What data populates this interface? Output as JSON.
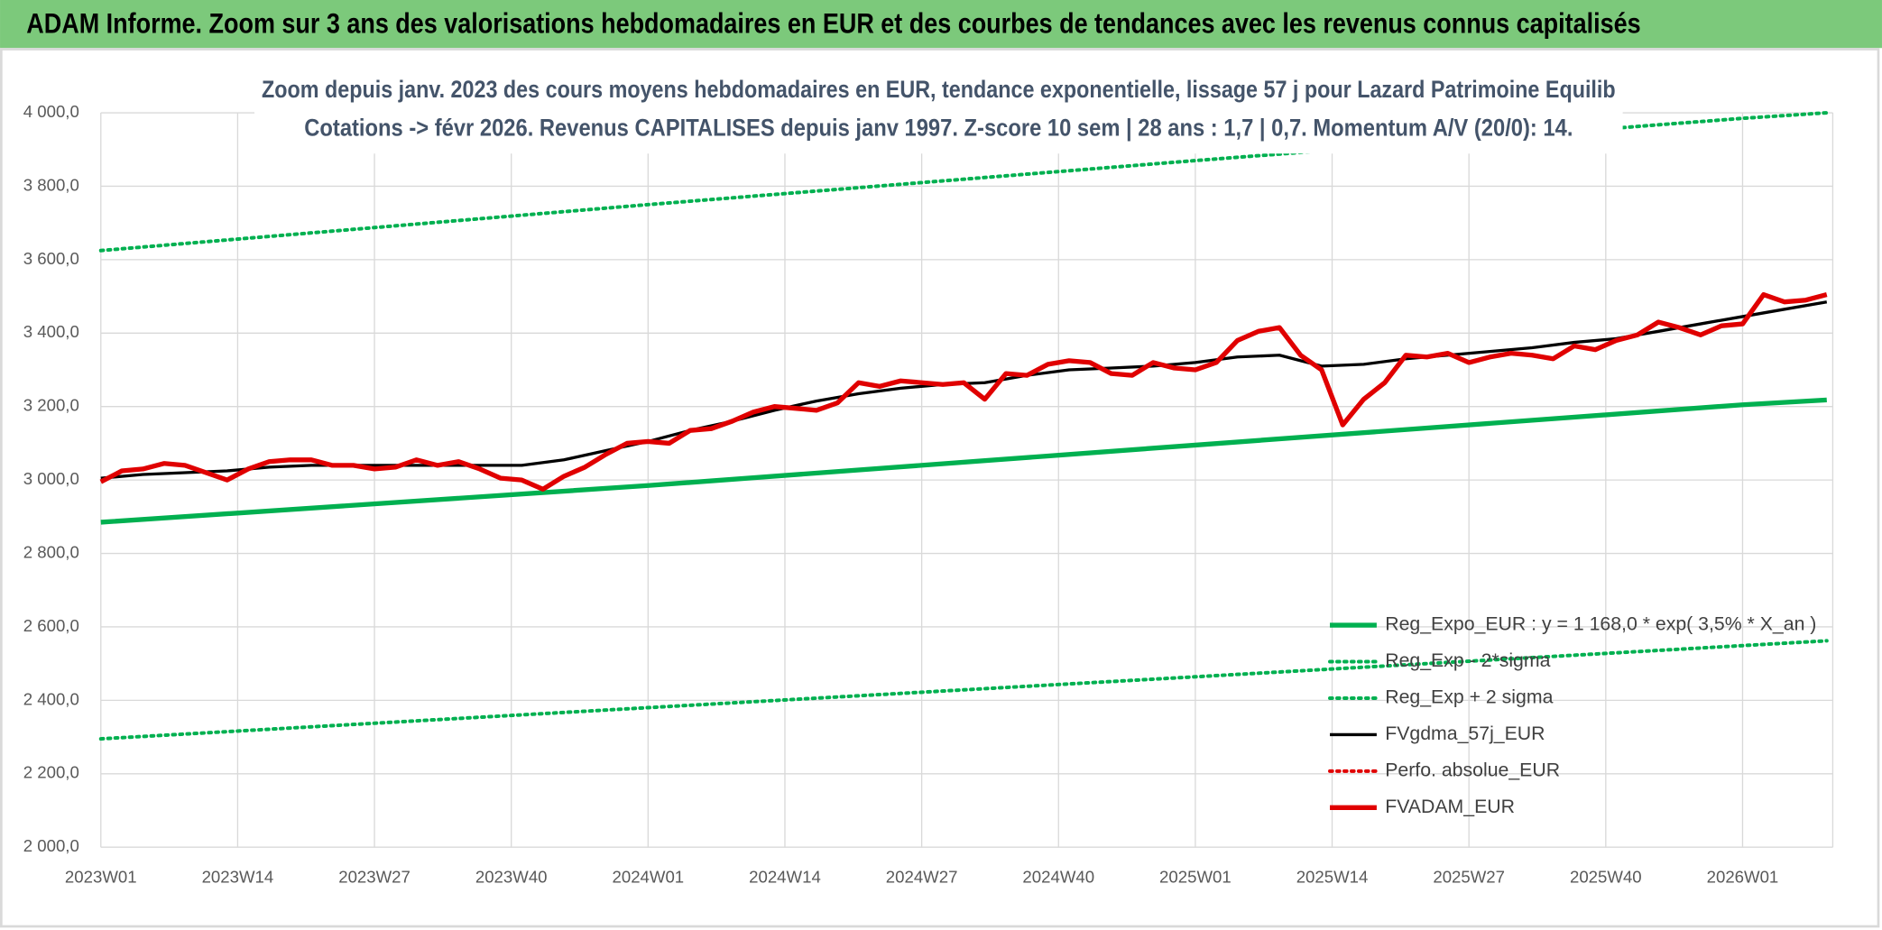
{
  "chart_data": {
    "type": "line",
    "title": "ADAM Informe. Zoom sur 3 ans des valorisations hebdomadaires en EUR et des courbes de tendances avec les revenus connus capitalisés",
    "subtitle": [
      "Zoom depuis janv. 2023 des cours moyens hebdomadaires en EUR, tendance exponentielle, lissage 57 j pour Lazard Patrimoine Equilib",
      "Cotations -> févr 2026. Revenus CAPITALISES depuis janv 1997. Z-score 10 sem | 28 ans : 1,7 | 0,7. Momentum A/V (20/0): 14."
    ],
    "xlim": [
      0,
      164
    ],
    "xticks": [
      {
        "value": 0,
        "label": "2023W01"
      },
      {
        "value": 13,
        "label": "2023W14"
      },
      {
        "value": 26,
        "label": "2023W27"
      },
      {
        "value": 39,
        "label": "2023W40"
      },
      {
        "value": 52,
        "label": "2024W01"
      },
      {
        "value": 65,
        "label": "2024W14"
      },
      {
        "value": 78,
        "label": "2024W27"
      },
      {
        "value": 91,
        "label": "2024W40"
      },
      {
        "value": 104,
        "label": "2025W01"
      },
      {
        "value": 117,
        "label": "2025W14"
      },
      {
        "value": 130,
        "label": "2025W27"
      },
      {
        "value": 143,
        "label": "2025W40"
      },
      {
        "value": 156,
        "label": "2026W01"
      }
    ],
    "ylim": [
      2000,
      4000
    ],
    "yticks": [
      {
        "value": 2000,
        "label": "2 000,0"
      },
      {
        "value": 2200,
        "label": "2 200,0"
      },
      {
        "value": 2400,
        "label": "2 400,0"
      },
      {
        "value": 2600,
        "label": "2 600,0"
      },
      {
        "value": 2800,
        "label": "2 800,0"
      },
      {
        "value": 3000,
        "label": "3 000,0"
      },
      {
        "value": 3200,
        "label": "3 200,0"
      },
      {
        "value": 3400,
        "label": "3 400,0"
      },
      {
        "value": 3600,
        "label": "3 600,0"
      },
      {
        "value": 3800,
        "label": "3 800,0"
      },
      {
        "value": 4000,
        "label": "4 000,0"
      }
    ],
    "grid": true,
    "legend": "lower right",
    "series": [
      {
        "name": "Reg_Expo_EUR : y = 1 168,0 * exp( 3,5% *  X_an )",
        "color": "#00b050",
        "style": "solid-thick",
        "x": [
          0,
          52,
          104,
          156,
          164
        ],
        "values": [
          2885,
          2985,
          3095,
          3205,
          3218
        ]
      },
      {
        "name": "Reg_Exp - 2*sigma",
        "color": "#00b050",
        "style": "dotted",
        "x": [
          0,
          52,
          104,
          156,
          164
        ],
        "values": [
          2295,
          2380,
          2464,
          2549,
          2562
        ]
      },
      {
        "name": "Reg_Exp + 2 sigma",
        "color": "#00b050",
        "style": "dotted",
        "x": [
          0,
          52,
          104,
          156,
          164
        ],
        "values": [
          3625,
          3750,
          3870,
          3985,
          4000
        ]
      },
      {
        "name": "FVgdma_57j_EUR",
        "color": "#000000",
        "style": "solid",
        "x": [
          0,
          4,
          8,
          12,
          16,
          20,
          24,
          28,
          32,
          36,
          40,
          44,
          48,
          52,
          56,
          60,
          64,
          68,
          72,
          76,
          80,
          84,
          88,
          92,
          96,
          100,
          104,
          108,
          112,
          116,
          120,
          124,
          128,
          132,
          136,
          140,
          144,
          148,
          152,
          156,
          160,
          164
        ],
        "values": [
          3005,
          3015,
          3020,
          3025,
          3035,
          3040,
          3040,
          3040,
          3040,
          3040,
          3040,
          3055,
          3080,
          3105,
          3135,
          3160,
          3190,
          3215,
          3235,
          3250,
          3260,
          3265,
          3285,
          3300,
          3305,
          3310,
          3320,
          3335,
          3340,
          3310,
          3315,
          3330,
          3340,
          3350,
          3360,
          3375,
          3385,
          3405,
          3425,
          3445,
          3465,
          3485
        ]
      },
      {
        "name": "Perfo. absolue_EUR",
        "color": "#e00000",
        "style": "dotted",
        "x": [],
        "values": []
      },
      {
        "name": "FVADAM_EUR",
        "color": "#e00000",
        "style": "solid-thick",
        "x": [
          0,
          2,
          4,
          6,
          8,
          10,
          12,
          14,
          16,
          18,
          20,
          22,
          24,
          26,
          28,
          30,
          32,
          34,
          36,
          38,
          40,
          42,
          44,
          46,
          48,
          50,
          52,
          54,
          56,
          58,
          60,
          62,
          64,
          66,
          68,
          70,
          72,
          74,
          76,
          78,
          80,
          82,
          84,
          86,
          88,
          90,
          92,
          94,
          96,
          98,
          100,
          102,
          104,
          106,
          108,
          110,
          112,
          114,
          116,
          118,
          120,
          122,
          124,
          126,
          128,
          130,
          132,
          134,
          136,
          138,
          140,
          142,
          144,
          146,
          148,
          150,
          152,
          154,
          156,
          158,
          160,
          162,
          164
        ],
        "values": [
          2995,
          3025,
          3030,
          3045,
          3040,
          3020,
          3000,
          3030,
          3050,
          3055,
          3055,
          3040,
          3040,
          3030,
          3035,
          3055,
          3040,
          3050,
          3030,
          3005,
          3000,
          2975,
          3010,
          3035,
          3070,
          3100,
          3105,
          3100,
          3135,
          3140,
          3160,
          3185,
          3200,
          3195,
          3190,
          3210,
          3265,
          3255,
          3270,
          3265,
          3260,
          3265,
          3220,
          3290,
          3285,
          3315,
          3325,
          3320,
          3290,
          3285,
          3320,
          3305,
          3300,
          3320,
          3380,
          3405,
          3415,
          3340,
          3300,
          3150,
          3220,
          3265,
          3340,
          3335,
          3345,
          3320,
          3335,
          3345,
          3340,
          3330,
          3365,
          3355,
          3380,
          3395,
          3430,
          3415,
          3395,
          3420,
          3425,
          3505,
          3485,
          3490,
          3505
        ]
      }
    ]
  }
}
